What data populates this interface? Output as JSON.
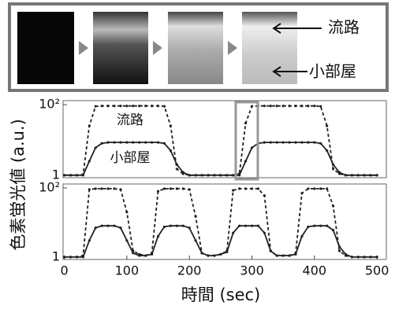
{
  "image_panel": {
    "channel_label": "流路",
    "chamber_label": "小部屋"
  },
  "y_axis_label": "色素蛍光値 (a.u.)",
  "chart_data": [
    {
      "type": "line",
      "log_y": true,
      "xlim": [
        -2,
        515
      ],
      "ylim": [
        0.85,
        130
      ],
      "yticks": [
        1,
        {
          "value": 100,
          "label": "10²"
        }
      ],
      "x": [
        0,
        10,
        20,
        30,
        40,
        50,
        60,
        70,
        80,
        90,
        100,
        110,
        120,
        130,
        140,
        150,
        160,
        170,
        180,
        190,
        200,
        210,
        220,
        230,
        240,
        250,
        260,
        270,
        280,
        290,
        300,
        310,
        320,
        330,
        340,
        350,
        360,
        370,
        380,
        390,
        400,
        410,
        420,
        430,
        440,
        450,
        460,
        470,
        480,
        490,
        500
      ],
      "series": [
        {
          "name": "流路",
          "color": "#222222",
          "dashed": true,
          "values": [
            1,
            1,
            1,
            1.05,
            25,
            90,
            92,
            92,
            92,
            92,
            92,
            92,
            92,
            92,
            92,
            92,
            90,
            25,
            1.5,
            1.1,
            1,
            1,
            1,
            1,
            1,
            1,
            1,
            1,
            1.1,
            30,
            90,
            92,
            92,
            92,
            92,
            92,
            92,
            92,
            92,
            92,
            92,
            90,
            25,
            1.5,
            1.1,
            1,
            1,
            1,
            1,
            1,
            1
          ]
        },
        {
          "name": "小部屋",
          "color": "#222222",
          "dashed": false,
          "values": [
            1,
            1,
            1,
            1,
            2.5,
            6,
            8,
            8.5,
            8.5,
            8.5,
            8.5,
            8.5,
            8.5,
            8.5,
            8.5,
            8.5,
            8,
            5,
            2,
            1.2,
            1,
            1,
            1,
            1,
            1,
            1,
            1,
            1,
            1,
            2.5,
            6,
            8,
            8.5,
            8.5,
            8.5,
            8.5,
            8.5,
            8.5,
            8.5,
            8.5,
            8.5,
            8,
            5,
            2,
            1.2,
            1,
            1,
            1,
            1,
            1,
            1
          ]
        }
      ]
    },
    {
      "type": "line",
      "log_y": true,
      "xlim": [
        -2,
        515
      ],
      "ylim": [
        0.85,
        130
      ],
      "yticks": [
        1,
        {
          "value": 100,
          "label": "10²"
        }
      ],
      "xticks": [
        0,
        100,
        200,
        300,
        400,
        500
      ],
      "xlabel": "時間 (sec)",
      "x": [
        0,
        10,
        20,
        30,
        40,
        50,
        60,
        70,
        80,
        90,
        100,
        110,
        120,
        130,
        140,
        150,
        160,
        170,
        180,
        190,
        200,
        210,
        220,
        230,
        240,
        250,
        260,
        270,
        280,
        290,
        300,
        310,
        320,
        330,
        340,
        350,
        360,
        370,
        380,
        390,
        400,
        410,
        420,
        430,
        440,
        450,
        460,
        470,
        480,
        490,
        500
      ],
      "series": [
        {
          "color": "#222222",
          "dashed": true,
          "values": [
            1,
            1,
            1,
            1.1,
            90,
            95,
            95,
            95,
            95,
            90,
            20,
            1.5,
            1.2,
            1.1,
            1.3,
            80,
            95,
            95,
            95,
            95,
            90,
            15,
            1.3,
            1.1,
            1.1,
            1.2,
            1.5,
            85,
            95,
            95,
            95,
            95,
            60,
            1.5,
            1.1,
            1.1,
            1.1,
            1.3,
            70,
            95,
            95,
            95,
            95,
            30,
            1.5,
            1.1,
            1,
            1,
            1,
            1,
            1
          ]
        },
        {
          "color": "#222222",
          "dashed": false,
          "values": [
            1,
            1,
            1,
            1,
            3,
            7,
            8,
            8,
            8,
            7,
            3,
            1.3,
            1.1,
            1.1,
            1.2,
            4,
            7.5,
            8,
            8,
            8,
            7,
            3,
            1.3,
            1.1,
            1.1,
            1.2,
            1.4,
            5,
            8,
            8,
            8,
            8,
            5,
            1.5,
            1.1,
            1.1,
            1.1,
            1.2,
            4,
            7.5,
            8,
            8,
            8,
            6,
            2,
            1.2,
            1,
            1,
            1,
            1,
            1
          ]
        }
      ]
    }
  ]
}
